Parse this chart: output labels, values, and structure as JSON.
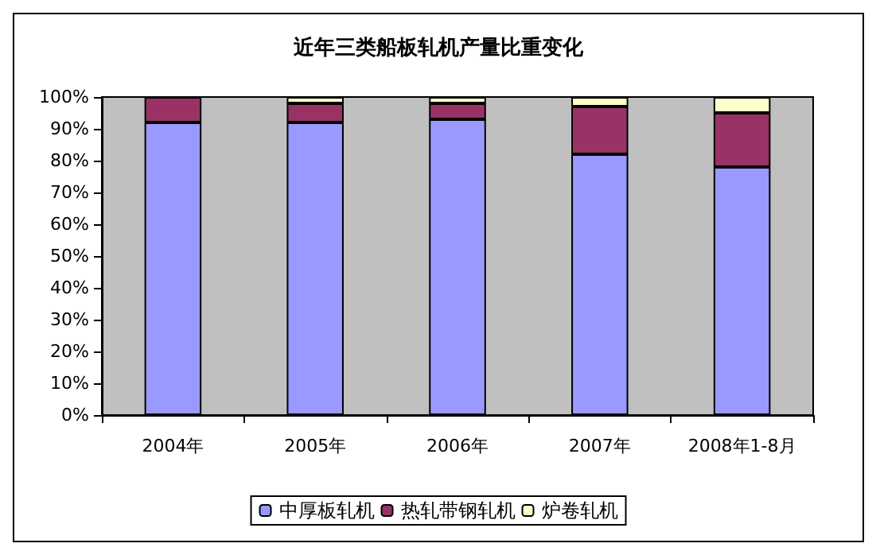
{
  "chart_data": {
    "type": "bar",
    "title": "近年三类船板轧机产量比重变化",
    "categories": [
      "2004年",
      "2005年",
      "2006年",
      "2007年",
      "2008年1-8月"
    ],
    "stacked": true,
    "series": [
      {
        "name": "中厚板轧机",
        "color": "#9999ff",
        "values": [
          92,
          92,
          93,
          82,
          78
        ]
      },
      {
        "name": "热轧带钢轧机",
        "color": "#993366",
        "values": [
          8,
          6,
          5,
          15,
          17
        ]
      },
      {
        "name": "炉卷轧机",
        "color": "#ffffcc",
        "values": [
          0,
          2,
          2,
          3,
          5
        ]
      }
    ],
    "ylim": [
      0,
      100
    ],
    "yticks": [
      {
        "value": 0,
        "label": "0%"
      },
      {
        "value": 10,
        "label": "10%"
      },
      {
        "value": 20,
        "label": "20%"
      },
      {
        "value": 30,
        "label": "30%"
      },
      {
        "value": 40,
        "label": "40%"
      },
      {
        "value": 50,
        "label": "50%"
      },
      {
        "value": 60,
        "label": "60%"
      },
      {
        "value": 70,
        "label": "70%"
      },
      {
        "value": 80,
        "label": "80%"
      },
      {
        "value": 90,
        "label": "90%"
      },
      {
        "value": 100,
        "label": "100%"
      }
    ],
    "grid": false,
    "legend": "bottom"
  }
}
